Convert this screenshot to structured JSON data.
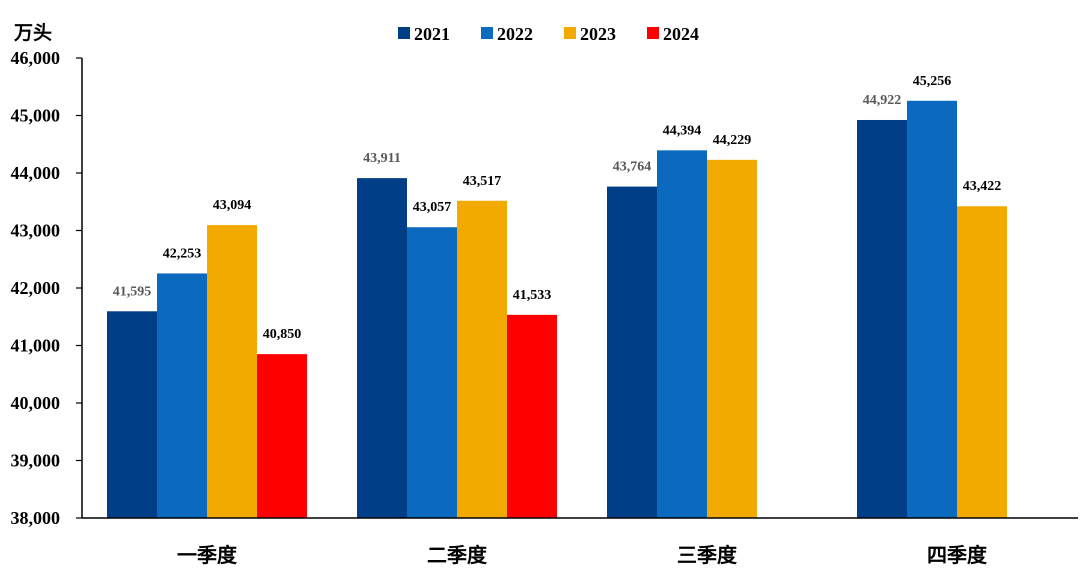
{
  "chart_data": {
    "type": "bar",
    "unit_label": "万头",
    "categories": [
      "一季度",
      "二季度",
      "三季度",
      "四季度"
    ],
    "series": [
      {
        "name": "2021",
        "color": "#003F87",
        "label_color": "#595959",
        "values": [
          41595,
          43911,
          43764,
          44922
        ]
      },
      {
        "name": "2022",
        "color": "#0B6ABF",
        "label_color": "#000000",
        "values": [
          42253,
          43057,
          44394,
          45256
        ]
      },
      {
        "name": "2023",
        "color": "#F2A900",
        "label_color": "#000000",
        "values": [
          43094,
          43517,
          44229,
          43422
        ]
      },
      {
        "name": "2024",
        "color": "#FF0000",
        "label_color": "#000000",
        "values": [
          40850,
          41533,
          null,
          null
        ]
      }
    ],
    "ylim": [
      38000,
      46000
    ],
    "yticks": [
      38000,
      39000,
      40000,
      41000,
      42000,
      43000,
      44000,
      45000,
      46000
    ],
    "ytick_labels": [
      "38,000",
      "39,000",
      "40,000",
      "41,000",
      "42,000",
      "43,000",
      "44,000",
      "45,000",
      "46,000"
    ],
    "data_labels": [
      [
        "41,595",
        "43,911",
        "43,764",
        "44,922"
      ],
      [
        "42,253",
        "43,057",
        "44,394",
        "45,256"
      ],
      [
        "43,094",
        "43,517",
        "44,229",
        "43,422"
      ],
      [
        "40,850",
        "41,533",
        null,
        null
      ]
    ],
    "legend_position": "top-center",
    "grid": false
  }
}
